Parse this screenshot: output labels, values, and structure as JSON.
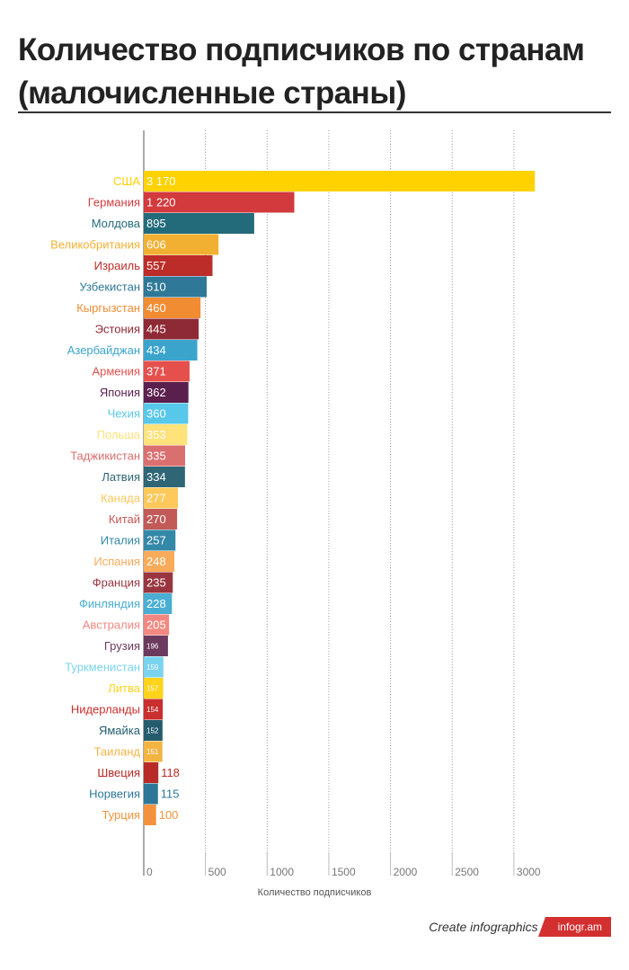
{
  "title": "Количество подписчиков по странам (малочисленные страны)",
  "footer": {
    "text": "Create infographics",
    "badge": "infogr.am"
  },
  "chart_data": {
    "type": "bar",
    "orientation": "horizontal",
    "title": "Количество подписчиков по странам (малочисленные страны)",
    "xlabel": "Количество подписчиков",
    "ylabel": "",
    "xlim": [
      0,
      3000
    ],
    "xticks": [
      0,
      500,
      1000,
      1500,
      2000,
      2500,
      3000
    ],
    "grid": true,
    "categories": [
      "США",
      "Германия",
      "Молдова",
      "Великобритания",
      "Израиль",
      "Узбекистан",
      "Кыргызстан",
      "Эстония",
      "Азербайджан",
      "Армения",
      "Япония",
      "Чехия",
      "Польша",
      "Таджикистан",
      "Латвия",
      "Канада",
      "Китай",
      "Италия",
      "Испания",
      "Франция",
      "Финляндия",
      "Австралия",
      "Грузия",
      "Туркменистан",
      "Литва",
      "Нидерланды",
      "Ямайка",
      "Таиланд",
      "Швеция",
      "Норвегия",
      "Турция"
    ],
    "values": [
      3170,
      1220,
      895,
      606,
      557,
      510,
      460,
      445,
      434,
      371,
      362,
      360,
      353,
      335,
      334,
      277,
      270,
      257,
      248,
      235,
      228,
      205,
      196,
      159,
      157,
      154,
      152,
      151,
      118,
      115,
      100
    ],
    "value_labels": [
      "3 170",
      "1 220",
      "895",
      "606",
      "557",
      "510",
      "460",
      "445",
      "434",
      "371",
      "362",
      "360",
      "353",
      "335",
      "334",
      "277",
      "270",
      "257",
      "248",
      "235",
      "228",
      "205",
      "196",
      "159",
      "157",
      "154",
      "152",
      "151",
      "118",
      "115",
      "100"
    ],
    "colors": [
      "#ffd200",
      "#d23a3d",
      "#236b7a",
      "#f2b033",
      "#bc2d2a",
      "#2f7898",
      "#f28c33",
      "#8e2a35",
      "#3ba4cd",
      "#e5504d",
      "#5a1f4d",
      "#58c8ea",
      "#ffe27a",
      "#d96f6f",
      "#2f6676",
      "#ffc85a",
      "#c25a57",
      "#3488a8",
      "#f8ab5a",
      "#99353f",
      "#49aed2",
      "#f28881",
      "#6c3a5e",
      "#7ad3ee",
      "#ffd31c",
      "#c82f2e",
      "#245c6e",
      "#f4b443",
      "#b72c27",
      "#2c7799",
      "#f3923c"
    ]
  }
}
